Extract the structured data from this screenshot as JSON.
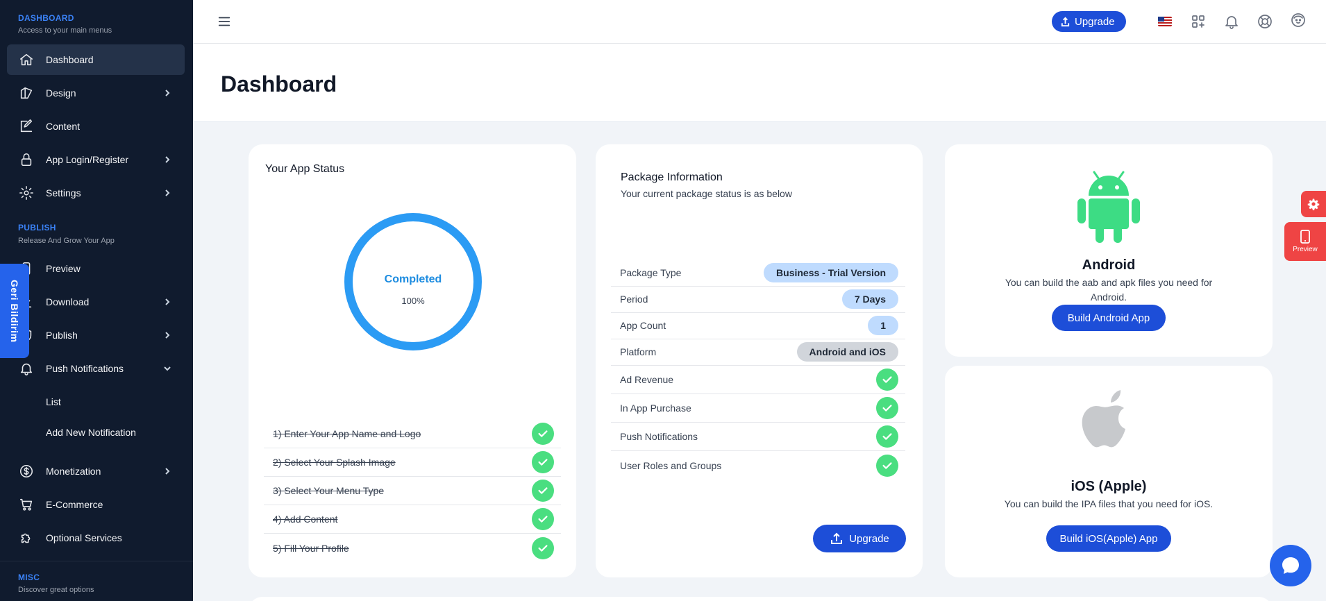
{
  "sidebar": {
    "sections": {
      "dashboard": {
        "title": "DASHBOARD",
        "subtitle": "Access to your main menus"
      },
      "publish": {
        "title": "PUBLISH",
        "subtitle": "Release And Grow Your App"
      },
      "misc": {
        "title": "MISC",
        "subtitle": "Discover great options"
      }
    },
    "items": {
      "dashboard": "Dashboard",
      "design": "Design",
      "content": "Content",
      "app_login": "App Login/Register",
      "settings": "Settings",
      "preview": "Preview",
      "download": "Download",
      "publish": "Publish",
      "push": "Push Notifications",
      "push_list": "List",
      "push_add": "Add New Notification",
      "monetization": "Monetization",
      "ecommerce": "E-Commerce",
      "optional": "Optional Services"
    },
    "feedback_tab": "Geri Bildirim"
  },
  "topbar": {
    "upgrade_label": "Upgrade",
    "icons": [
      "menu-icon",
      "us-flag-icon",
      "apps-add-icon",
      "bell-icon",
      "support-icon",
      "avatar-icon"
    ]
  },
  "page": {
    "title": "Dashboard"
  },
  "app_status": {
    "title": "Your App Status",
    "status_label": "Completed",
    "progress_text": "100%",
    "progress": 1.0,
    "ring_color": "#2b9bf4",
    "steps": [
      "1) Enter Your App Name and Logo",
      "2) Select Your Splash Image",
      "3) Select Your Menu Type",
      "4) Add Content",
      "5) Fill Your Profile"
    ]
  },
  "package": {
    "title": "Package Information",
    "subtitle": "Your current package status is as below",
    "rows": {
      "type": {
        "label": "Package Type",
        "value": "Business - Trial Version"
      },
      "period": {
        "label": "Period",
        "value": "7 Days"
      },
      "count": {
        "label": "App Count",
        "value": "1"
      },
      "platform": {
        "label": "Platform",
        "value": "Android and iOS"
      },
      "ad": {
        "label": "Ad Revenue"
      },
      "iap": {
        "label": "In App Purchase"
      },
      "push": {
        "label": "Push Notifications"
      },
      "roles": {
        "label": "User Roles and Groups"
      }
    },
    "upgrade_label": "Upgrade"
  },
  "android": {
    "title": "Android",
    "description": "You can build the aab and apk files you need for Android.",
    "button": "Build Android App",
    "color": "#3ddc84"
  },
  "ios": {
    "title": "iOS (Apple)",
    "description": "You can build the IPA files that you need for iOS.",
    "button": "Build iOS(Apple) App",
    "color": "#c7c9cc"
  },
  "floating": {
    "preview_label": "Preview"
  },
  "colors": {
    "accent": "#1d4ed8",
    "sidebar_bg": "#101b2e",
    "success": "#4ade80",
    "danger": "#ef4444"
  }
}
